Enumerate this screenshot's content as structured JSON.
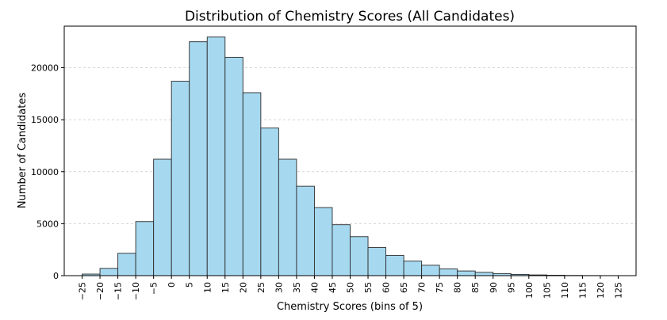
{
  "chart_data": {
    "type": "bar",
    "title": "Distribution of Chemistry Scores (All Candidates)",
    "xlabel": "Chemistry Scores (bins of 5)",
    "ylabel": "Number of Candidates",
    "bin_width": 5,
    "x_ticks": [
      -25,
      -20,
      -15,
      -10,
      -5,
      0,
      5,
      10,
      15,
      20,
      25,
      30,
      35,
      40,
      45,
      50,
      55,
      60,
      65,
      70,
      75,
      80,
      85,
      90,
      95,
      100,
      105,
      110,
      115,
      120,
      125
    ],
    "y_ticks": [
      0,
      5000,
      10000,
      15000,
      20000
    ],
    "xlim": [
      -30,
      130
    ],
    "ylim": [
      0,
      24000
    ],
    "grid": "y-dashed",
    "bins": [
      {
        "start": -25,
        "count": 150
      },
      {
        "start": -20,
        "count": 700
      },
      {
        "start": -15,
        "count": 2150
      },
      {
        "start": -10,
        "count": 5200
      },
      {
        "start": -5,
        "count": 11200
      },
      {
        "start": 0,
        "count": 18700
      },
      {
        "start": 5,
        "count": 22500
      },
      {
        "start": 10,
        "count": 22950
      },
      {
        "start": 15,
        "count": 21000
      },
      {
        "start": 20,
        "count": 17600
      },
      {
        "start": 25,
        "count": 14200
      },
      {
        "start": 30,
        "count": 11200
      },
      {
        "start": 35,
        "count": 8600
      },
      {
        "start": 40,
        "count": 6550
      },
      {
        "start": 45,
        "count": 4900
      },
      {
        "start": 50,
        "count": 3750
      },
      {
        "start": 55,
        "count": 2700
      },
      {
        "start": 60,
        "count": 1950
      },
      {
        "start": 65,
        "count": 1400
      },
      {
        "start": 70,
        "count": 1000
      },
      {
        "start": 75,
        "count": 650
      },
      {
        "start": 80,
        "count": 450
      },
      {
        "start": 85,
        "count": 320
      },
      {
        "start": 90,
        "count": 200
      },
      {
        "start": 95,
        "count": 120
      },
      {
        "start": 100,
        "count": 70
      },
      {
        "start": 105,
        "count": 40
      },
      {
        "start": 110,
        "count": 20
      },
      {
        "start": 115,
        "count": 10
      },
      {
        "start": 120,
        "count": 5
      }
    ],
    "colors": {
      "bar_fill": "#a6d9f0",
      "bar_edge": "#2b2b2b",
      "grid": "#c8c8c8",
      "axis": "#000000"
    }
  }
}
